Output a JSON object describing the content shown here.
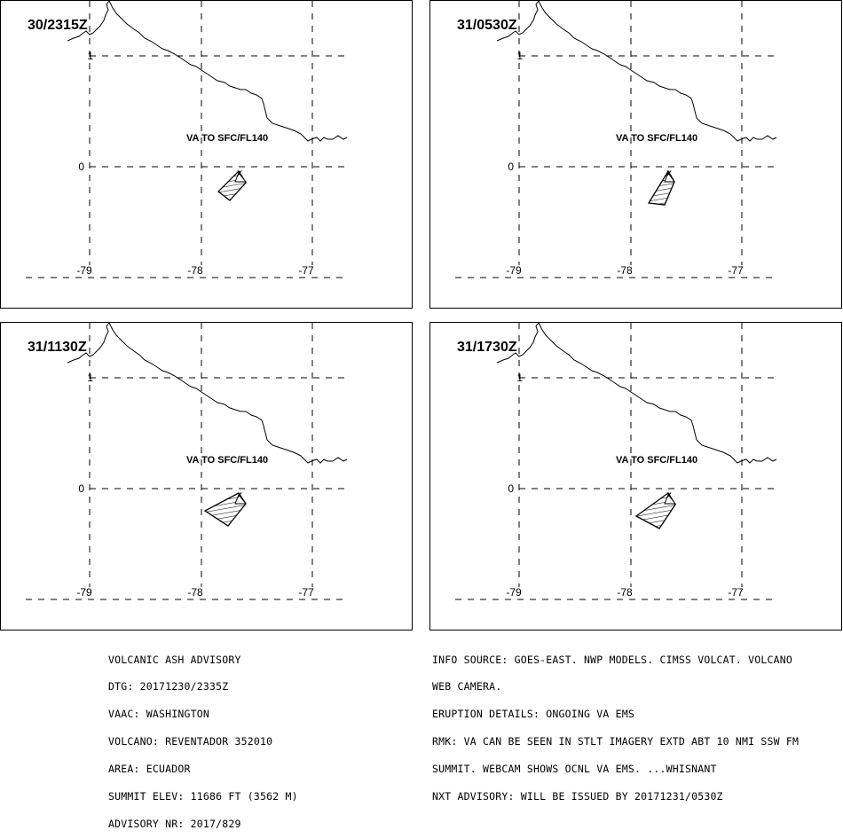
{
  "panels": [
    {
      "time": "30/2315Z",
      "va_label": "VA TO SFC/FL140"
    },
    {
      "time": "31/0530Z",
      "va_label": "VA TO SFC/FL140"
    },
    {
      "time": "31/1130Z",
      "va_label": "VA TO SFC/FL140"
    },
    {
      "time": "31/1730Z",
      "va_label": "VA TO SFC/FL140"
    }
  ],
  "map": {
    "lat_labels": [
      "1",
      "0"
    ],
    "lon_labels": [
      "-79",
      "-78",
      "-77"
    ],
    "volcano_marker": "x"
  },
  "advisory": [
    "VOLCANIC ASH ADVISORY",
    "DTG: 20171230/2335Z",
    "VAAC: WASHINGTON",
    "VOLCANO: REVENTADOR 352010",
    "AREA: ECUADOR",
    "SUMMIT ELEV: 11686 FT (3562 M)",
    "ADVISORY NR: 2017/829"
  ],
  "remarks": [
    "INFO SOURCE: GOES-EAST. NWP MODELS. CIMSS VOLCAT. VOLCANO",
    "WEB CAMERA.",
    "ERUPTION DETAILS: ONGOING VA EMS",
    "RMK: VA CAN BE SEEN IN STLT IMAGERY EXTD ABT 10 NMI SSW FM",
    "SUMMIT. WEBCAM SHOWS OCNL VA EMS. ...WHISNANT",
    "NXT ADVISORY: WILL BE ISSUED BY 20171231/0530Z"
  ]
}
